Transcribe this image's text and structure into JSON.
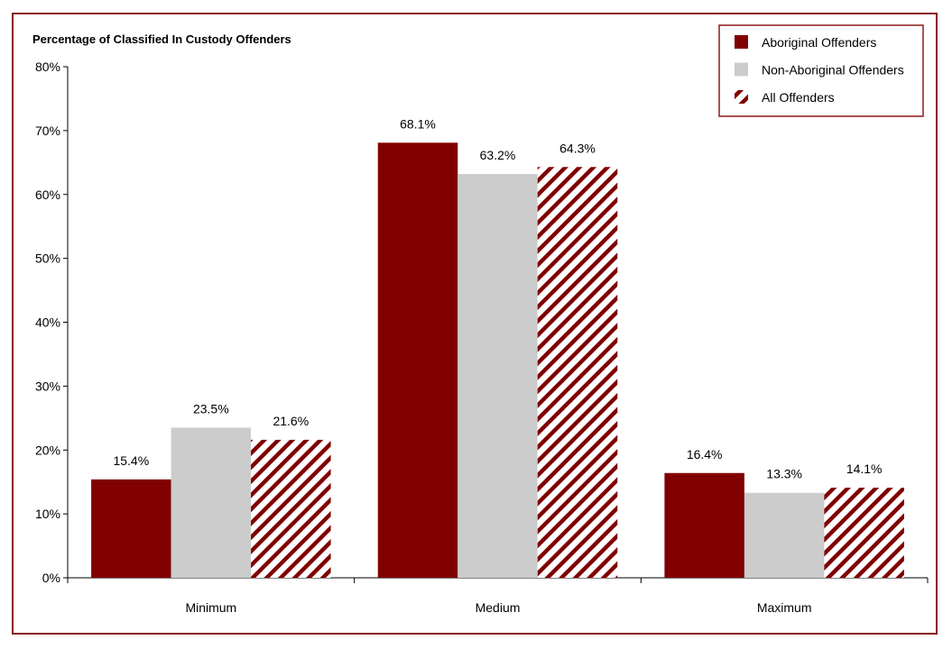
{
  "chart_data": {
    "type": "bar",
    "title": "Percentage of Classified In Custody Offenders",
    "xlabel": "",
    "ylabel": "",
    "categories": [
      "Minimum",
      "Medium",
      "Maximum"
    ],
    "series": [
      {
        "name": "Aboriginal Offenders",
        "values": [
          15.4,
          68.1,
          16.4
        ],
        "labels": [
          "15.4%",
          "68.1%",
          "16.4%"
        ],
        "color": "#800000",
        "fill": "solid"
      },
      {
        "name": "Non-Aboriginal Offenders",
        "values": [
          23.5,
          63.2,
          13.3
        ],
        "labels": [
          "23.5%",
          "63.2%",
          "13.3%"
        ],
        "color": "#cccccc",
        "fill": "solid"
      },
      {
        "name": "All Offenders",
        "values": [
          21.6,
          64.3,
          14.1
        ],
        "labels": [
          "21.6%",
          "64.3%",
          "14.1%"
        ],
        "color": "#800000",
        "fill": "diagonal-hatch"
      }
    ],
    "ylim": [
      0,
      80
    ],
    "yticks": [
      "0%",
      "10%",
      "20%",
      "30%",
      "40%",
      "50%",
      "60%",
      "70%",
      "80%"
    ],
    "grid": false,
    "legend": "top-right",
    "frame_color": "#8b1a1a"
  }
}
